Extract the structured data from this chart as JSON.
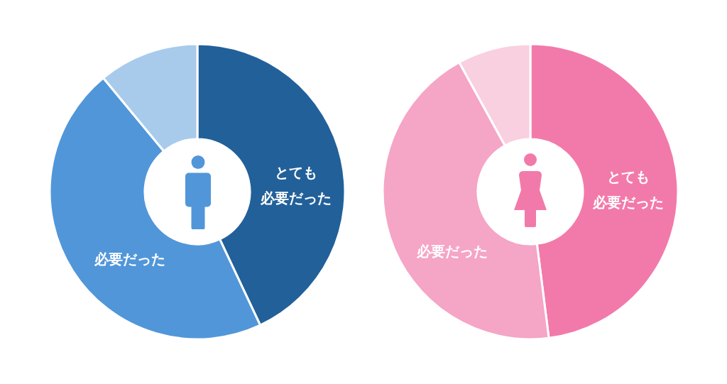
{
  "chart_data": [
    {
      "type": "donut",
      "categories": [
        "とても必要だった",
        "必要だった",
        null
      ],
      "values": [
        43,
        46,
        11
      ],
      "colors": [
        "#22609a",
        "#5196d9",
        "#a8cbec"
      ]
    },
    {
      "type": "donut",
      "categories": [
        "とても必要だった",
        "必要だった",
        null
      ],
      "values": [
        48,
        44,
        8
      ],
      "colors": [
        "#f27aaa",
        "#f5a5c5",
        "#f9d0e0"
      ]
    }
  ]
}
